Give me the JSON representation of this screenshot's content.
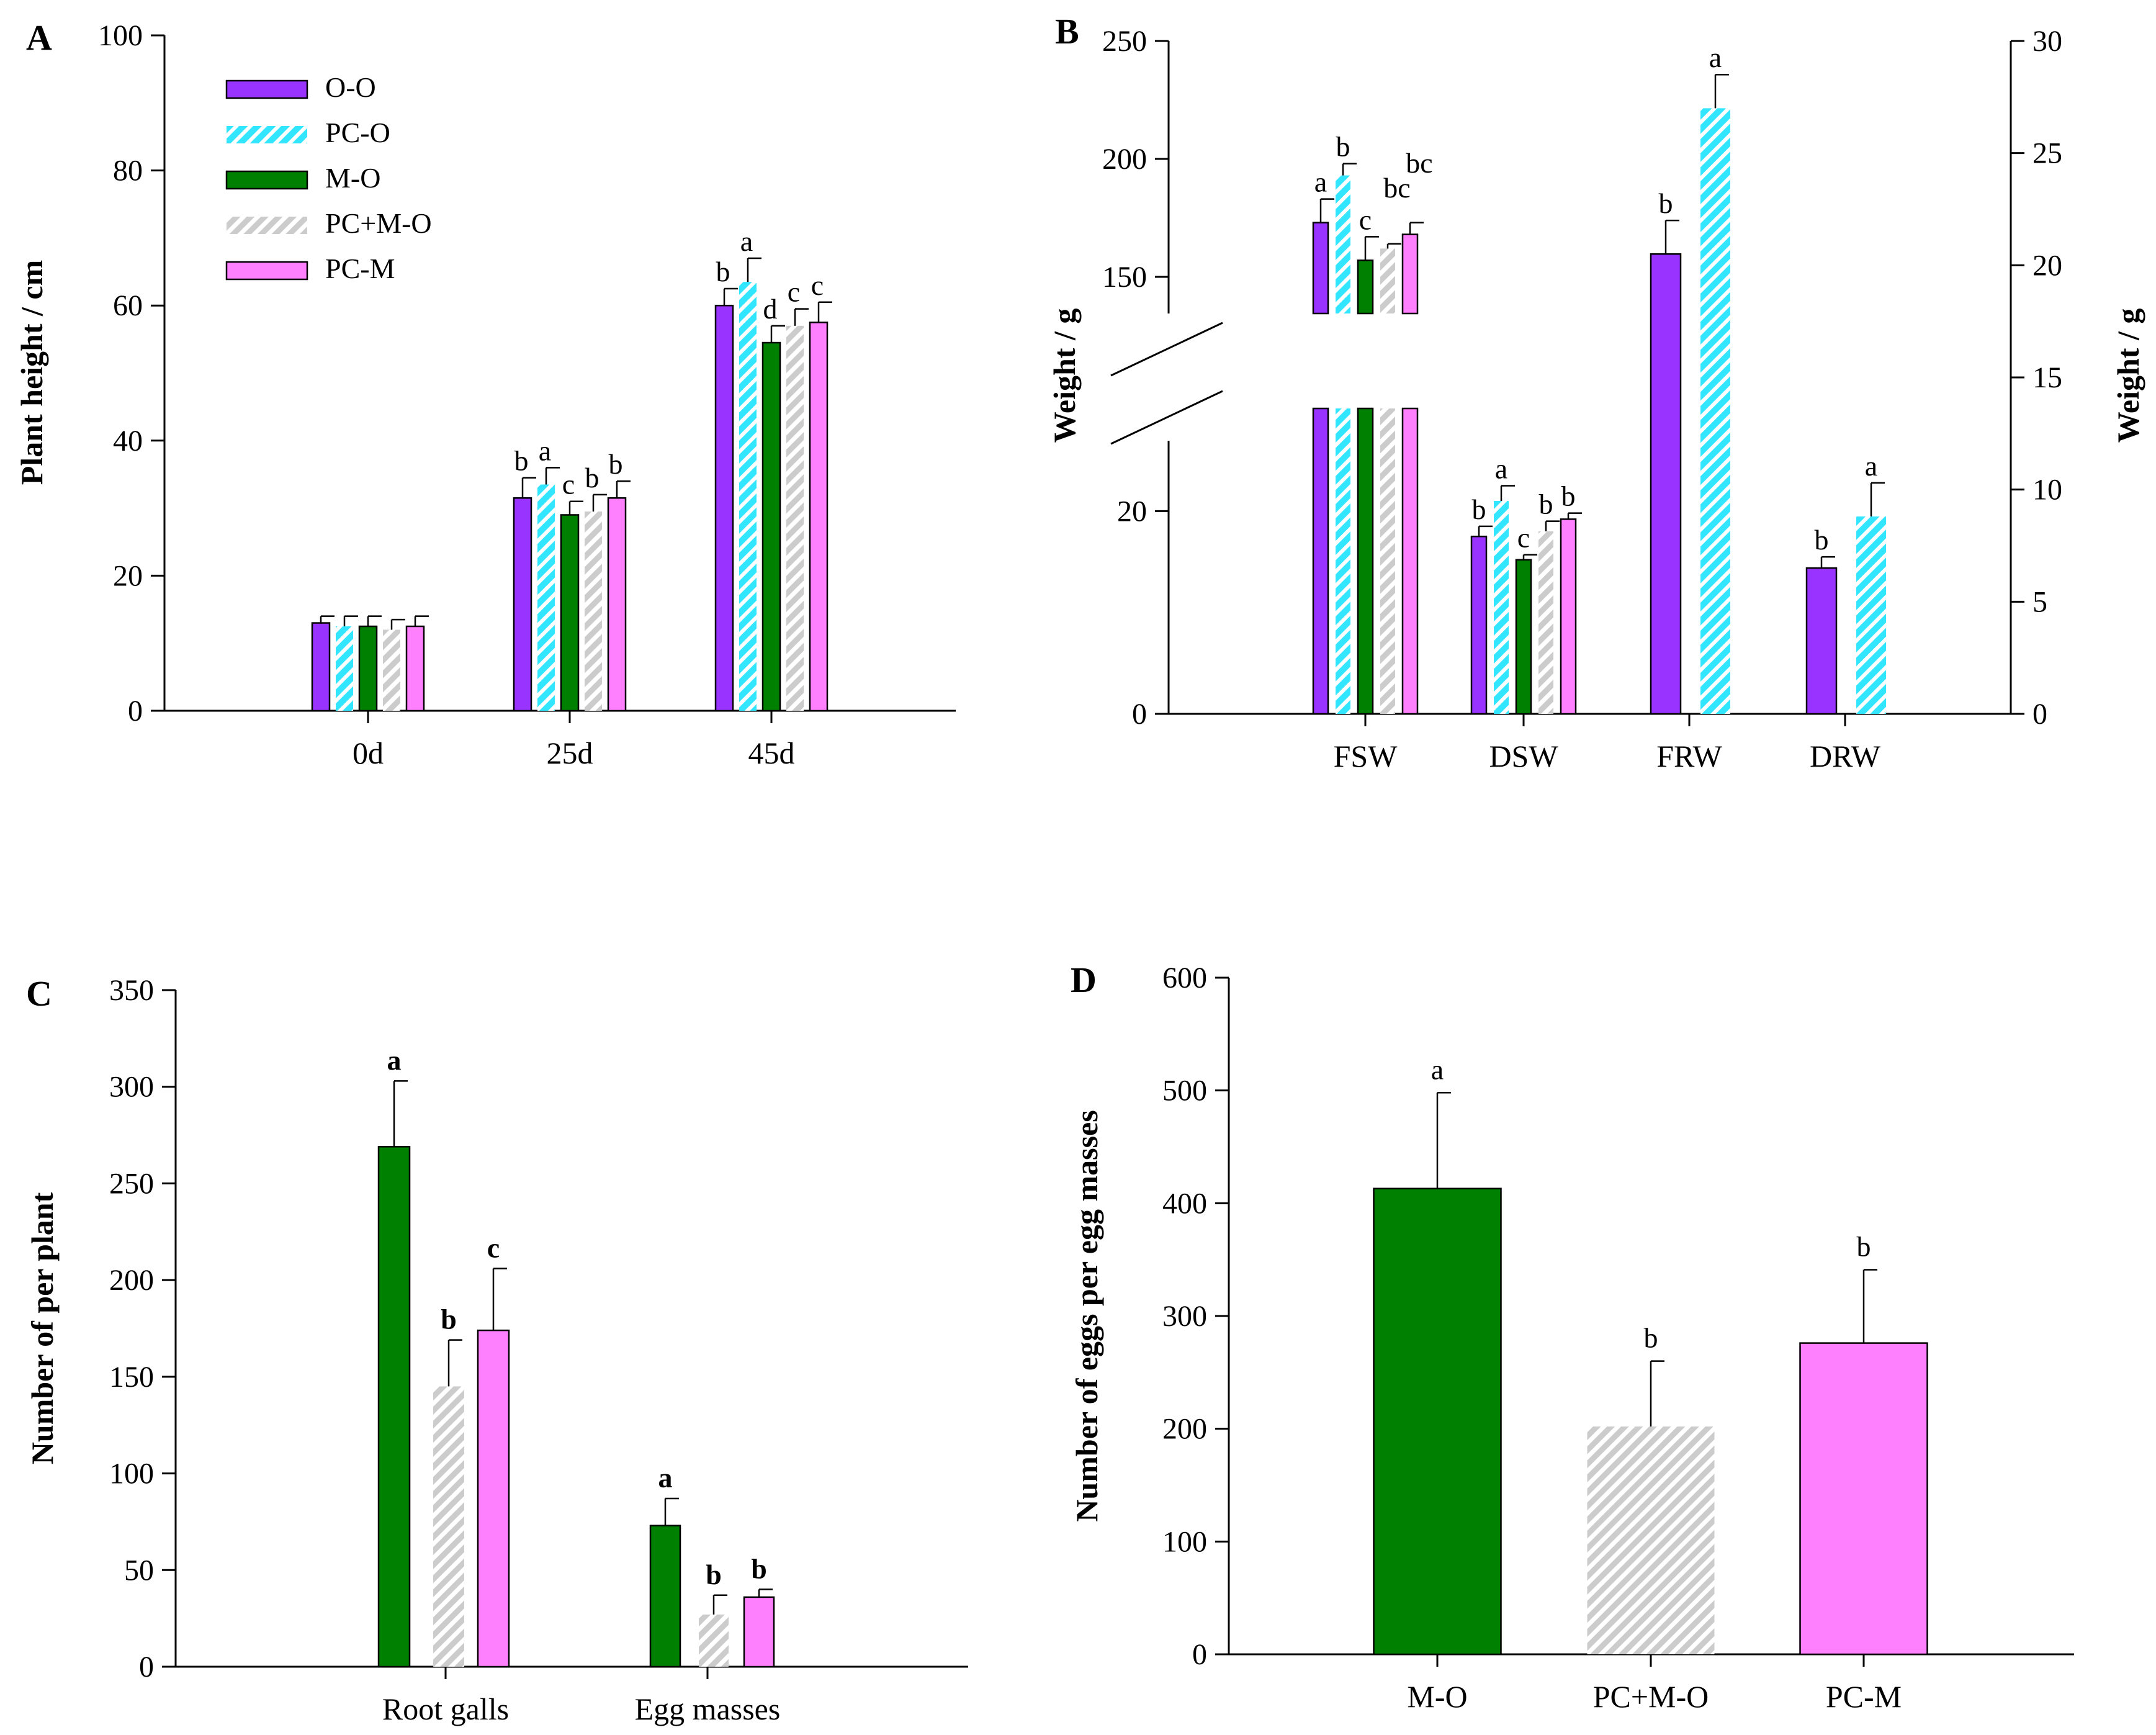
{
  "chart_data": [
    {
      "panel": "A",
      "type": "bar",
      "ylabel": "Plant height / cm",
      "ylim": [
        0,
        100
      ],
      "yticks": [
        0,
        20,
        40,
        60,
        80,
        100
      ],
      "categories": [
        "0d",
        "25d",
        "45d"
      ],
      "legend": [
        "O-O",
        "PC-O",
        "M-O",
        "PC+M-O",
        "PC-M"
      ],
      "legend_position": "top-left",
      "series": [
        {
          "name": "O-O",
          "values": [
            13,
            31.5,
            60
          ],
          "errors": [
            1,
            3,
            2.5
          ],
          "letters": [
            "",
            "b",
            "b"
          ],
          "color": "#9933ff",
          "pattern": "solid"
        },
        {
          "name": "PC-O",
          "values": [
            12.5,
            33.5,
            63.5
          ],
          "errors": [
            1.5,
            2.5,
            3.5
          ],
          "letters": [
            "",
            "a",
            "a"
          ],
          "color": "#33e6ff",
          "pattern": "hatch"
        },
        {
          "name": "M-O",
          "values": [
            12.5,
            29,
            54.5
          ],
          "errors": [
            1.5,
            2,
            2.5
          ],
          "letters": [
            "",
            "c",
            "d"
          ],
          "color": "#008000",
          "pattern": "solid"
        },
        {
          "name": "PC+M-O",
          "values": [
            12,
            29.5,
            57
          ],
          "errors": [
            1.5,
            2.5,
            2.5
          ],
          "letters": [
            "",
            "b",
            "c"
          ],
          "color": "#cccccc",
          "pattern": "hatch"
        },
        {
          "name": "PC-M",
          "values": [
            12.5,
            31.5,
            57.5
          ],
          "errors": [
            1.5,
            2.5,
            3
          ],
          "letters": [
            "",
            "b",
            "c"
          ],
          "color": "#ff80ff",
          "pattern": "solid"
        }
      ]
    },
    {
      "panel": "B",
      "type": "bar",
      "ylabel_left": "Weight / g",
      "ylabel_right": "Weight / g",
      "left_axis_lower": [
        0,
        30
      ],
      "left_axis_upper": [
        120,
        250
      ],
      "left_yticks": [
        0,
        20,
        150,
        200,
        250
      ],
      "right_ylim": [
        0,
        30
      ],
      "right_yticks": [
        0,
        5,
        10,
        15,
        20,
        25,
        30
      ],
      "categories": [
        "FSW",
        "DSW",
        "FRW",
        "DRW"
      ],
      "series": [
        {
          "name": "O-O",
          "values": [
            173,
            17.5,
            20.5,
            6.5
          ],
          "errors": [
            10,
            1,
            1.5,
            0.5
          ],
          "letters": [
            "a",
            "b",
            "b",
            "b"
          ],
          "axis": [
            "left",
            "left",
            "right",
            "right"
          ],
          "color": "#9933ff",
          "pattern": "solid"
        },
        {
          "name": "PC-O",
          "values": [
            193,
            21,
            27,
            8.8
          ],
          "errors": [
            5,
            1.5,
            1.5,
            1.5
          ],
          "letters": [
            "b",
            "a",
            "a",
            "a"
          ],
          "axis": [
            "left",
            "left",
            "right",
            "right"
          ],
          "color": "#33e6ff",
          "pattern": "hatch"
        },
        {
          "name": "M-O",
          "values": [
            157,
            15.2,
            null,
            null
          ],
          "errors": [
            10,
            0.5,
            null,
            null
          ],
          "letters": [
            "c",
            "c",
            "",
            ""
          ],
          "axis": [
            "left",
            "left",
            "",
            ""
          ],
          "color": "#008000",
          "pattern": "solid"
        },
        {
          "name": "PC+M-O",
          "values": [
            162,
            18,
            null,
            null
          ],
          "errors": [
            2,
            1,
            null,
            null
          ],
          "letters": [
            "bc",
            "b",
            "",
            ""
          ],
          "axis": [
            "left",
            "left",
            "",
            ""
          ],
          "color": "#cccccc",
          "pattern": "hatch"
        },
        {
          "name": "PC-M",
          "values": [
            168,
            19.2,
            null,
            null
          ],
          "errors": [
            5,
            0.6,
            null,
            null
          ],
          "letters": [
            "bc",
            "b",
            "",
            ""
          ],
          "axis": [
            "left",
            "left",
            "",
            ""
          ],
          "color": "#ff80ff",
          "pattern": "solid"
        }
      ]
    },
    {
      "panel": "C",
      "type": "bar",
      "ylabel": "Number of per plant",
      "ylim": [
        0,
        350
      ],
      "yticks": [
        0,
        50,
        100,
        150,
        200,
        250,
        300,
        350
      ],
      "categories": [
        "Root galls",
        "Egg masses"
      ],
      "series": [
        {
          "name": "M-O",
          "values": [
            269,
            73
          ],
          "errors": [
            34,
            14
          ],
          "letters": [
            "a",
            "a"
          ],
          "color": "#008000",
          "pattern": "solid"
        },
        {
          "name": "PC+M-O",
          "values": [
            145,
            27
          ],
          "errors": [
            24,
            10
          ],
          "letters": [
            "b",
            "b"
          ],
          "color": "#cccccc",
          "pattern": "hatch"
        },
        {
          "name": "PC-M",
          "values": [
            174,
            36
          ],
          "errors": [
            32,
            4
          ],
          "letters": [
            "c",
            "b"
          ],
          "color": "#ff80ff",
          "pattern": "solid"
        }
      ]
    },
    {
      "panel": "D",
      "type": "bar",
      "ylabel": "Number of eggs per egg masses",
      "ylim": [
        0,
        600
      ],
      "yticks": [
        0,
        100,
        200,
        300,
        400,
        500,
        600
      ],
      "categories": [
        "M-O",
        "PC+M-O",
        "PC-M"
      ],
      "values": [
        413,
        202,
        276
      ],
      "errors": [
        85,
        58,
        65
      ],
      "letters": [
        "a",
        "b",
        "b"
      ],
      "colors": [
        "#008000",
        "#cccccc",
        "#ff80ff"
      ],
      "patterns": [
        "solid",
        "hatch",
        "solid"
      ]
    }
  ]
}
